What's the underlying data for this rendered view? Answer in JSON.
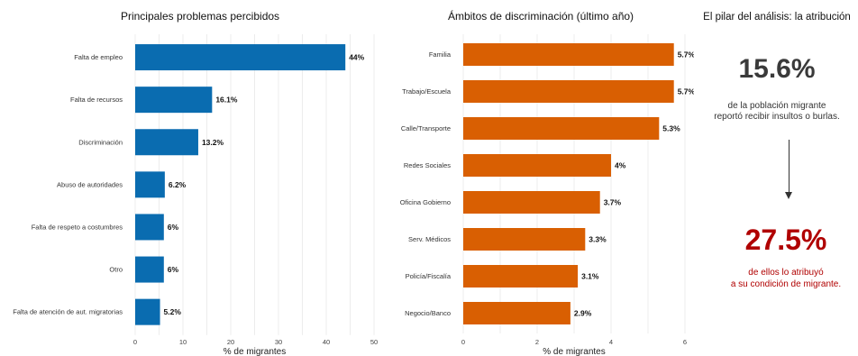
{
  "chart_data": [
    {
      "type": "bar",
      "orientation": "horizontal",
      "title": "Principales problemas percibidos",
      "xlabel": "% de migrantes",
      "ylabel": "",
      "categories": [
        "Falta de empleo",
        "Falta de recursos",
        "Discriminación",
        "Abuso de autoridades",
        "Falta de respeto a costumbres",
        "Otro",
        "Falta de atención de aut. migratorias"
      ],
      "values": [
        44,
        16.1,
        13.2,
        6.2,
        6,
        6,
        5.2
      ],
      "value_labels": [
        "44%",
        "16.1%",
        "13.2%",
        "6.2%",
        "6%",
        "6%",
        "5.2%"
      ],
      "xlim": [
        0,
        50
      ],
      "ticks": [
        0,
        10,
        20,
        30,
        40,
        50
      ],
      "color": "#0a6cb0",
      "grid": true
    },
    {
      "type": "bar",
      "orientation": "horizontal",
      "title": "Ámbitos de discriminación (último año)",
      "xlabel": "% de migrantes",
      "ylabel": "",
      "categories": [
        "Familia",
        "Trabajo/Escuela",
        "Calle/Transporte",
        "Redes Sociales",
        "Oficina Gobierno",
        "Serv. Médicos",
        "Policía/Fiscalía",
        "Negocio/Banco"
      ],
      "values": [
        5.7,
        5.7,
        5.3,
        4,
        3.7,
        3.3,
        3.1,
        2.9
      ],
      "value_labels": [
        "5.7%",
        "5.7%",
        "5.3%",
        "4%",
        "3.7%",
        "3.3%",
        "3.1%",
        "2.9%"
      ],
      "xlim": [
        0,
        6
      ],
      "ticks": [
        0,
        2,
        4,
        6
      ],
      "color": "#d95f02",
      "grid": true
    }
  ],
  "panel": {
    "title": "El pilar del análisis: la atribución",
    "stat1": "15.6%",
    "stat1_line1": "de la población migrante",
    "stat1_line2": "reportó recibir insultos o burlas.",
    "stat2": "27.5%",
    "stat2_line1": "de ellos lo atribuyó",
    "stat2_line2": "a su condición de migrante.",
    "stat1_color": "#3a3a3a",
    "stat2_color": "#b00000"
  }
}
